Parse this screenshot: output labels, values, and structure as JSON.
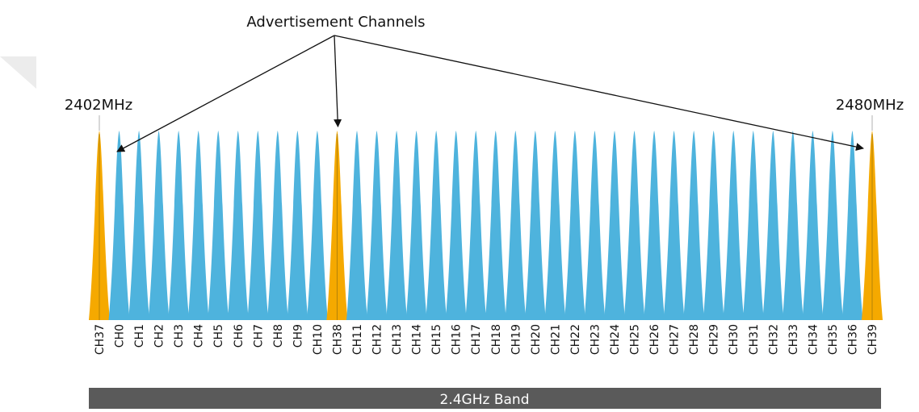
{
  "diagram": {
    "title": "Advertisement Channels",
    "freq_low_label": "2402MHz",
    "freq_high_label": "2480MHz",
    "band_label": "2.4GHz Band",
    "colors": {
      "advertising": "#f5a900",
      "data": "#4eb3dd",
      "band_bar": "#5a5a5a",
      "arrow": "#111111",
      "text": "#111111",
      "marker": "#b0b0b0"
    },
    "channels": [
      {
        "label": "CH37",
        "type": "advertising"
      },
      {
        "label": "CH0",
        "type": "data"
      },
      {
        "label": "CH1",
        "type": "data"
      },
      {
        "label": "CH2",
        "type": "data"
      },
      {
        "label": "CH3",
        "type": "data"
      },
      {
        "label": "CH4",
        "type": "data"
      },
      {
        "label": "CH5",
        "type": "data"
      },
      {
        "label": "CH6",
        "type": "data"
      },
      {
        "label": "CH7",
        "type": "data"
      },
      {
        "label": "CH8",
        "type": "data"
      },
      {
        "label": "CH9",
        "type": "data"
      },
      {
        "label": "CH10",
        "type": "data"
      },
      {
        "label": "CH38",
        "type": "advertising"
      },
      {
        "label": "CH11",
        "type": "data"
      },
      {
        "label": "CH12",
        "type": "data"
      },
      {
        "label": "CH13",
        "type": "data"
      },
      {
        "label": "CH14",
        "type": "data"
      },
      {
        "label": "CH15",
        "type": "data"
      },
      {
        "label": "CH16",
        "type": "data"
      },
      {
        "label": "CH17",
        "type": "data"
      },
      {
        "label": "CH18",
        "type": "data"
      },
      {
        "label": "CH19",
        "type": "data"
      },
      {
        "label": "CH20",
        "type": "data"
      },
      {
        "label": "CH21",
        "type": "data"
      },
      {
        "label": "CH22",
        "type": "data"
      },
      {
        "label": "CH23",
        "type": "data"
      },
      {
        "label": "CH24",
        "type": "data"
      },
      {
        "label": "CH25",
        "type": "data"
      },
      {
        "label": "CH26",
        "type": "data"
      },
      {
        "label": "CH27",
        "type": "data"
      },
      {
        "label": "CH28",
        "type": "data"
      },
      {
        "label": "CH29",
        "type": "data"
      },
      {
        "label": "CH30",
        "type": "data"
      },
      {
        "label": "CH31",
        "type": "data"
      },
      {
        "label": "CH32",
        "type": "data"
      },
      {
        "label": "CH33",
        "type": "data"
      },
      {
        "label": "CH34",
        "type": "data"
      },
      {
        "label": "CH35",
        "type": "data"
      },
      {
        "label": "CH36",
        "type": "data"
      },
      {
        "label": "CH39",
        "type": "advertising"
      }
    ]
  }
}
